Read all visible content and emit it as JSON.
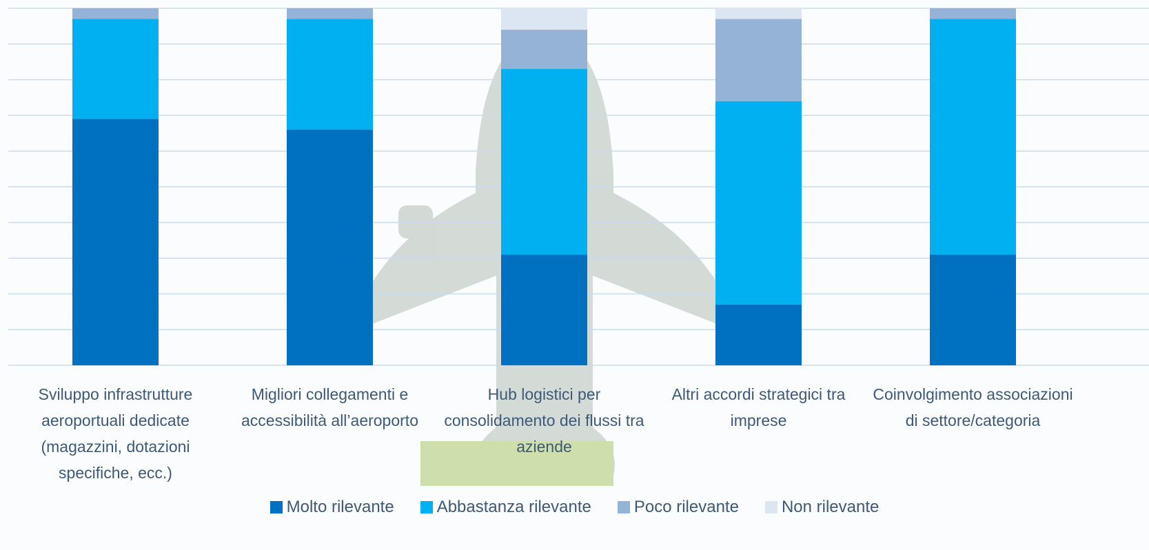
{
  "chart_data": {
    "type": "stacked_bar",
    "categories": [
      "Sviluppo infrastrutture aeroportuali dedicate (magazzini, dotazioni specifiche, ecc.)",
      "Migliori collegamenti e accessibilità all’aeroporto",
      "Hub logistici per consolidamento dei flussi tra aziende",
      "Altri accordi strategici tra imprese",
      "Coinvolgimento associazioni di settore/categoria"
    ],
    "series": [
      {
        "name": "Molto rilevante",
        "color": "#0070c0",
        "values": [
          69,
          66,
          31,
          17,
          31
        ]
      },
      {
        "name": "Abbastanza rilevante",
        "color": "#00b0f0",
        "values": [
          28,
          31,
          52,
          57,
          66
        ]
      },
      {
        "name": "Poco rilevante",
        "color": "#95b3d7",
        "values": [
          3,
          3,
          11,
          23,
          3
        ]
      },
      {
        "name": "Non rilevante",
        "color": "#dce6f2",
        "values": [
          0,
          0,
          6,
          3,
          0
        ]
      }
    ],
    "ylim": [
      0,
      100
    ],
    "yticks": [
      0,
      10,
      20,
      30,
      40,
      50,
      60,
      70,
      80,
      90,
      100
    ],
    "grid": true
  }
}
